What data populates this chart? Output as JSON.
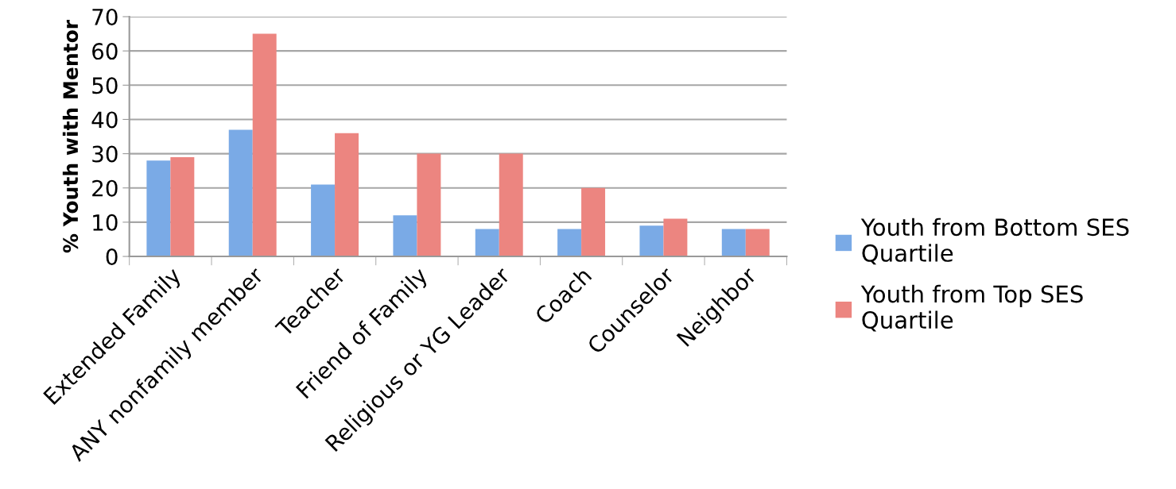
{
  "chart_data": {
    "type": "bar",
    "ylabel": "% Youth with Mentor",
    "categories": [
      "Extended Family",
      "ANY nonfamily member",
      "Teacher",
      "Friend of Family",
      "Religious or YG Leader",
      "Coach",
      "Counselor",
      "Neighbor"
    ],
    "series": [
      {
        "name": "Youth from Bottom SES Quartile",
        "color": "#7aaae6",
        "values": [
          28,
          37,
          21,
          12,
          8,
          8,
          9,
          8
        ]
      },
      {
        "name": "Youth from Top SES Quartile",
        "color": "#ec8580",
        "values": [
          29,
          65,
          36,
          30,
          30,
          20,
          11,
          8
        ]
      }
    ],
    "ylim": [
      0,
      70
    ],
    "yticks": [
      0,
      10,
      20,
      30,
      40,
      50,
      60,
      70
    ],
    "grid": "y",
    "legend": "right"
  }
}
